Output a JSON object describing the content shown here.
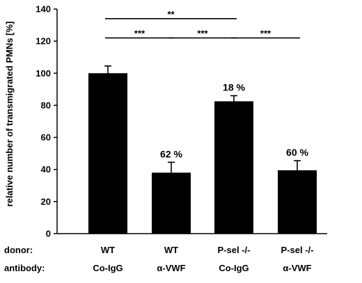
{
  "chart_data": {
    "type": "bar",
    "categories": [
      "WT / Co-IgG",
      "WT / α-VWF",
      "P-sel -/- / Co-IgG",
      "P-sel -/- / α-VWF"
    ],
    "values": [
      100,
      38,
      82.5,
      39.5
    ],
    "errors": [
      4.5,
      6.5,
      3.5,
      6
    ],
    "bar_labels": [
      "",
      "62 %",
      "18 %",
      "60 %"
    ],
    "ylabel": "relative number of transmigrated PMNs [%]",
    "ylim": [
      0,
      140
    ],
    "yticks": [
      0,
      20,
      40,
      60,
      80,
      100,
      120,
      140
    ],
    "bar_color": "#000000",
    "grid": false,
    "rows": [
      {
        "label": "donor:",
        "values": [
          "WT",
          "WT",
          "P-sel -/-",
          "P-sel -/-"
        ]
      },
      {
        "label": "antibody:",
        "values": [
          "Co-IgG",
          "α-VWF",
          "Co-IgG",
          "α-VWF"
        ]
      }
    ],
    "significance": [
      {
        "from": 0,
        "to": 2,
        "label": "**",
        "level": 134
      },
      {
        "from": 0,
        "to": 1,
        "label": "***",
        "level": 122
      },
      {
        "from": 1,
        "to": 2,
        "label": "***",
        "level": 122
      },
      {
        "from": 2,
        "to": 3,
        "label": "***",
        "level": 122
      }
    ]
  }
}
